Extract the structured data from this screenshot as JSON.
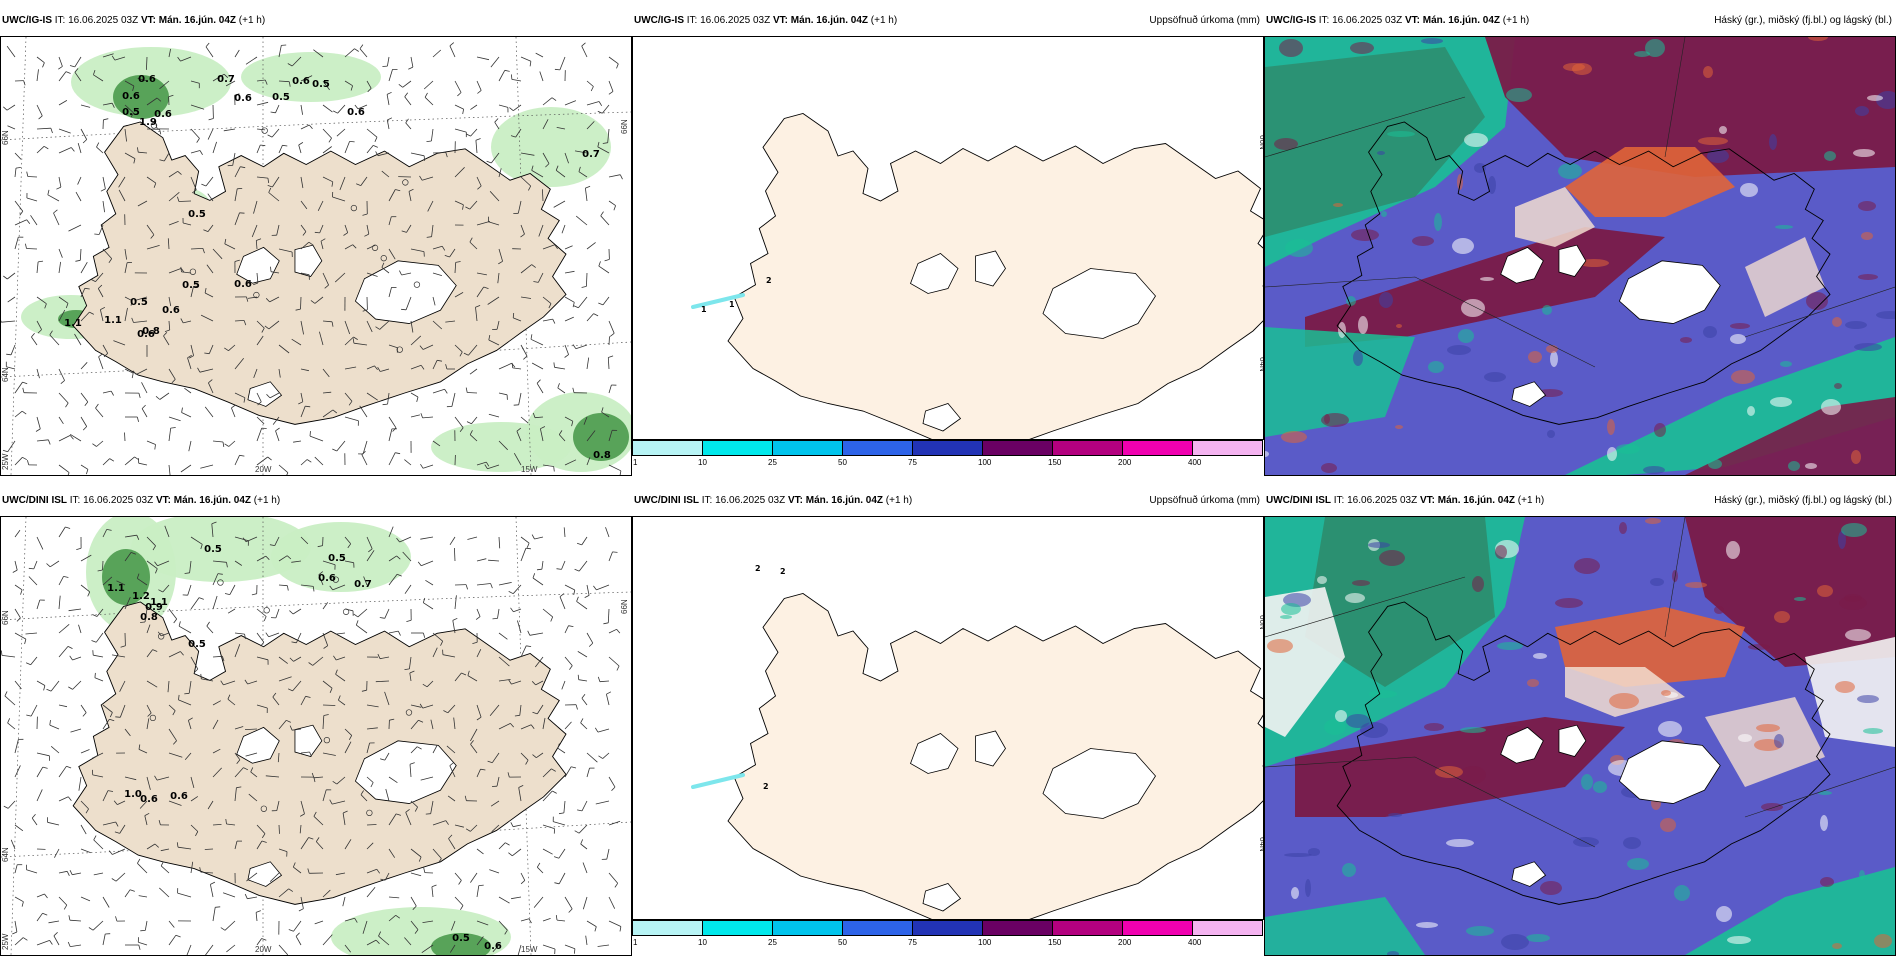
{
  "rows": [
    {
      "model": "UWC/IG-IS",
      "prec_labels": [
        "0.6",
        "0.7",
        "0.6",
        "0.5",
        "0.6",
        "0.6",
        "0.5",
        "0.6",
        "0.5",
        "1.1",
        "0.8",
        "0.6",
        "0.5",
        "0.6",
        "0.5",
        "0.7",
        "0.8",
        "0.5",
        "0.6",
        "0.6",
        "1.1",
        "1.9"
      ],
      "precip_marks": [
        "1",
        "1",
        "2"
      ]
    },
    {
      "model": "UWC/DINI ISL",
      "prec_labels": [
        "0.5",
        "0.5",
        "0.6",
        "0.7",
        "1.1",
        "1.2",
        "0.8",
        "0.9",
        "1.1",
        "0.5",
        "0.6",
        "1.0",
        "0.6",
        "0.5",
        "0.6"
      ],
      "precip_marks": [
        "2",
        "2",
        "2"
      ]
    }
  ],
  "header": {
    "it_label": "IT:",
    "it_value": "16.06.2025 03Z",
    "vt_label": "VT:",
    "vt_value": "Mán. 16.jún. 04Z",
    "lead": "(+1 h)"
  },
  "titles": {
    "precip": "Uppsöfnuð úrkoma (mm)",
    "cloud": "Háský (gr.), miðský (fj.bl.) og lágský (bl.)"
  },
  "axes": {
    "lat_66": "66N",
    "lat_64": "64N",
    "lat_25w": "25W",
    "lon_20w": "20W",
    "lon_15w": "15W"
  },
  "colorbar": {
    "ticks": [
      "1",
      "10",
      "25",
      "50",
      "75",
      "100",
      "150",
      "200",
      "400"
    ],
    "colors": [
      "#b7f4f5",
      "#00e8eb",
      "#00c4ec",
      "#2d63e8",
      "#2233b5",
      "#6a0063",
      "#b3007f",
      "#f000b0",
      "#f4b3f0"
    ]
  },
  "colors": {
    "land": "#eddfcc",
    "land_precip": "#fdf1e3",
    "green_light": "#c9eec4",
    "green_dark": "#4b9a4d",
    "cloud_blue": "#5a5bc8",
    "cloud_maroon": "#7a1b48",
    "cloud_teal": "#1abf95",
    "cloud_orange": "#e06438"
  }
}
